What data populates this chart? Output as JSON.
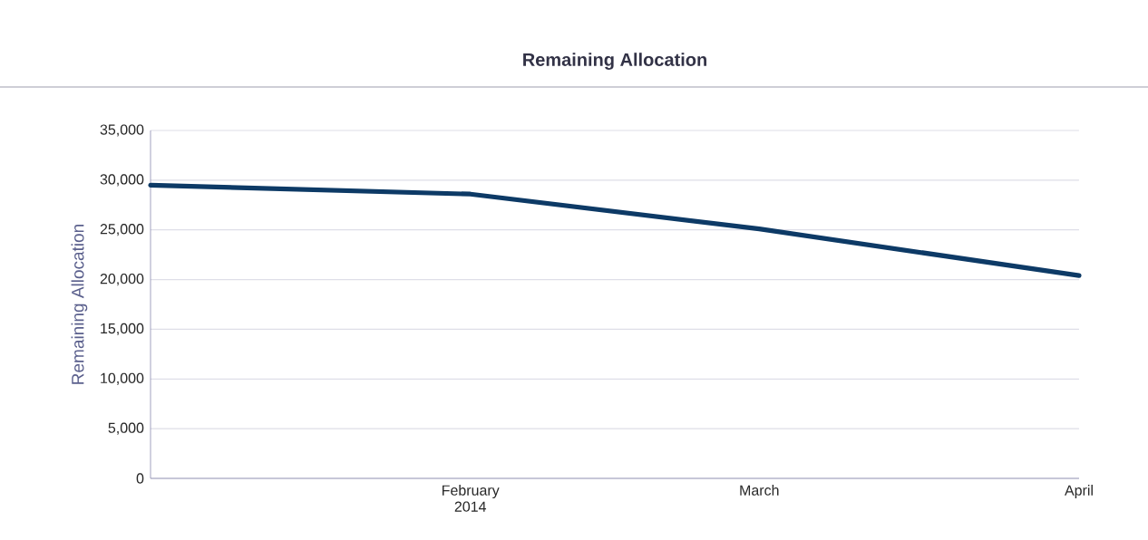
{
  "chart_data": {
    "type": "line",
    "title": "Remaining Allocation",
    "ylabel": "Remaining Allocation",
    "x": [
      "2014-01-01",
      "2014-02-01",
      "2014-03-01",
      "2014-04-01"
    ],
    "series": [
      {
        "color": "#0d3a66",
        "values": [
          29500,
          28600,
          25100,
          20400
        ]
      }
    ],
    "xlim": [
      "2014-01-01",
      "2014-04-01"
    ],
    "xticks": [
      {
        "value": "2014-02-01",
        "label": "February 2014"
      },
      {
        "value": "2014-03-01",
        "label": "March"
      },
      {
        "value": "2014-04-01",
        "label": "April"
      }
    ],
    "ylim": [
      0,
      35000
    ],
    "yticks": [
      {
        "value": 0,
        "label": "0"
      },
      {
        "value": 5000,
        "label": "5,000"
      },
      {
        "value": 10000,
        "label": "10,000"
      },
      {
        "value": 15000,
        "label": "15,000"
      },
      {
        "value": 20000,
        "label": "20,000"
      },
      {
        "value": 25000,
        "label": "25,000"
      },
      {
        "value": 30000,
        "label": "30,000"
      },
      {
        "value": 35000,
        "label": "35,000"
      }
    ],
    "grid": "y",
    "marker": "none",
    "line_style": "solid"
  }
}
